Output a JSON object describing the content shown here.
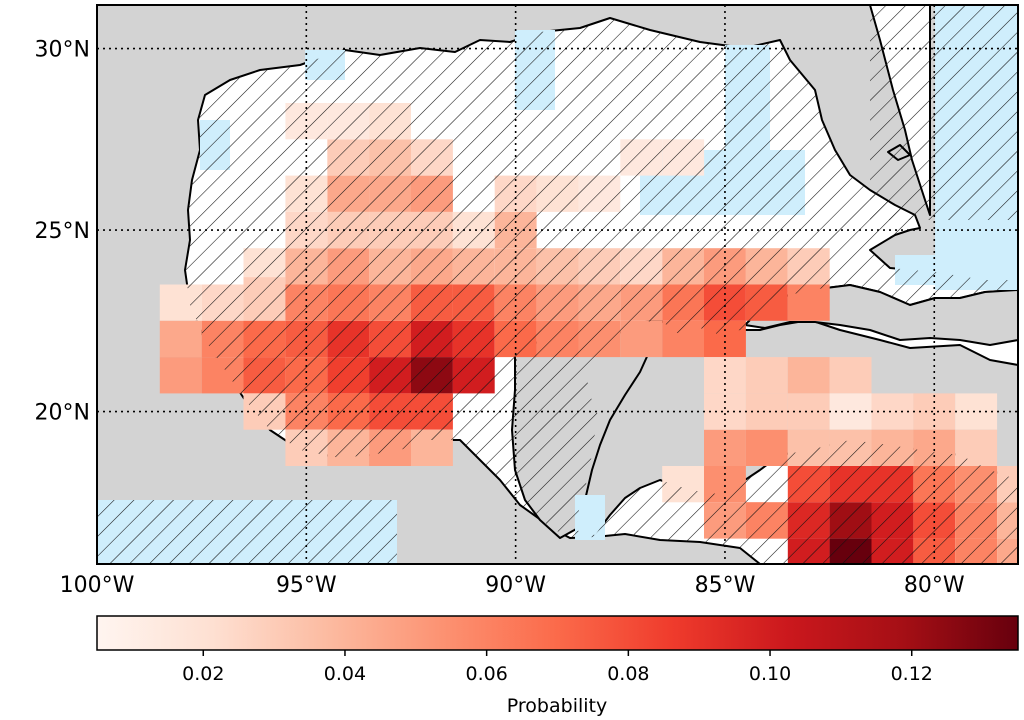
{
  "map": {
    "extent": {
      "lon_min": -100,
      "lon_max": -78,
      "lat_min": 15.8,
      "lat_max": 31.2
    },
    "gridlines": {
      "lon": [
        -95,
        -90,
        -85,
        -80
      ],
      "lat": [
        20,
        25,
        30
      ],
      "style": "dotted"
    },
    "colors": {
      "land": "#d3d3d3",
      "ocean": "#ffffff",
      "insignificant": "#cfeefc",
      "coast": "#000000"
    },
    "hatching": "diagonal hatch over areas not statistically significant"
  },
  "axes": {
    "lon_ticks": [
      {
        "value": -100,
        "label": "100°W"
      },
      {
        "value": -95,
        "label": "95°W"
      },
      {
        "value": -90,
        "label": "90°W"
      },
      {
        "value": -85,
        "label": "85°W"
      },
      {
        "value": -80,
        "label": "80°W"
      }
    ],
    "lat_ticks": [
      {
        "value": 20,
        "label": "20°N"
      },
      {
        "value": 25,
        "label": "25°N"
      },
      {
        "value": 30,
        "label": "30°N"
      }
    ]
  },
  "chart_data": {
    "type": "heatmap",
    "cell_size_deg": 1,
    "vmin": 0.005,
    "vmax": 0.135,
    "colormap": "Reds",
    "cells": [
      {
        "lon": -98,
        "lat": 23,
        "value": 0.02
      },
      {
        "lon": -97,
        "lat": 23,
        "value": 0.025
      },
      {
        "lon": -96,
        "lat": 23,
        "value": 0.03
      },
      {
        "lon": -98,
        "lat": 22,
        "value": 0.045
      },
      {
        "lon": -97,
        "lat": 22,
        "value": 0.06
      },
      {
        "lon": -96,
        "lat": 22,
        "value": 0.07
      },
      {
        "lon": -95,
        "lat": 22,
        "value": 0.075
      },
      {
        "lon": -94,
        "lat": 22,
        "value": 0.09
      },
      {
        "lon": -93,
        "lat": 22,
        "value": 0.08
      },
      {
        "lon": -92,
        "lat": 22,
        "value": 0.1
      },
      {
        "lon": -91,
        "lat": 22,
        "value": 0.09
      },
      {
        "lon": -90,
        "lat": 22,
        "value": 0.07
      },
      {
        "lon": -89,
        "lat": 22,
        "value": 0.06
      },
      {
        "lon": -88,
        "lat": 22,
        "value": 0.055
      },
      {
        "lon": -87,
        "lat": 22,
        "value": 0.05
      },
      {
        "lon": -86,
        "lat": 22,
        "value": 0.06
      },
      {
        "lon": -85,
        "lat": 22,
        "value": 0.07
      },
      {
        "lon": -98,
        "lat": 21,
        "value": 0.05
      },
      {
        "lon": -97,
        "lat": 21,
        "value": 0.06
      },
      {
        "lon": -96,
        "lat": 21,
        "value": 0.075
      },
      {
        "lon": -95,
        "lat": 21,
        "value": 0.07
      },
      {
        "lon": -94,
        "lat": 21,
        "value": 0.085
      },
      {
        "lon": -93,
        "lat": 21,
        "value": 0.1
      },
      {
        "lon": -92,
        "lat": 21,
        "value": 0.125
      },
      {
        "lon": -91,
        "lat": 21,
        "value": 0.1
      },
      {
        "lon": -96,
        "lat": 20,
        "value": 0.03
      },
      {
        "lon": -95,
        "lat": 20,
        "value": 0.06
      },
      {
        "lon": -94,
        "lat": 20,
        "value": 0.07
      },
      {
        "lon": -93,
        "lat": 20,
        "value": 0.08
      },
      {
        "lon": -92,
        "lat": 20,
        "value": 0.08
      },
      {
        "lon": -95,
        "lat": 19,
        "value": 0.03
      },
      {
        "lon": -94,
        "lat": 19,
        "value": 0.04
      },
      {
        "lon": -93,
        "lat": 19,
        "value": 0.05
      },
      {
        "lon": -92,
        "lat": 19,
        "value": 0.04
      },
      {
        "lon": -96,
        "lat": 24,
        "value": 0.02
      },
      {
        "lon": -95,
        "lat": 24,
        "value": 0.04
      },
      {
        "lon": -94,
        "lat": 24,
        "value": 0.05
      },
      {
        "lon": -93,
        "lat": 24,
        "value": 0.04
      },
      {
        "lon": -92,
        "lat": 24,
        "value": 0.045
      },
      {
        "lon": -91,
        "lat": 24,
        "value": 0.04
      },
      {
        "lon": -90,
        "lat": 24,
        "value": 0.04
      },
      {
        "lon": -89,
        "lat": 24,
        "value": 0.035
      },
      {
        "lon": -88,
        "lat": 24,
        "value": 0.03
      },
      {
        "lon": -87,
        "lat": 24,
        "value": 0.025
      },
      {
        "lon": -86,
        "lat": 24,
        "value": 0.04
      },
      {
        "lon": -85,
        "lat": 24,
        "value": 0.05
      },
      {
        "lon": -84,
        "lat": 24,
        "value": 0.04
      },
      {
        "lon": -83,
        "lat": 24,
        "value": 0.03
      },
      {
        "lon": -96,
        "lat": 23.2,
        "value": 0.03
      },
      {
        "lon": -95,
        "lat": 23,
        "value": 0.06
      },
      {
        "lon": -94,
        "lat": 23,
        "value": 0.065
      },
      {
        "lon": -93,
        "lat": 23,
        "value": 0.06
      },
      {
        "lon": -92,
        "lat": 23,
        "value": 0.075
      },
      {
        "lon": -91,
        "lat": 23,
        "value": 0.075
      },
      {
        "lon": -90,
        "lat": 23,
        "value": 0.06
      },
      {
        "lon": -89,
        "lat": 23,
        "value": 0.05
      },
      {
        "lon": -88,
        "lat": 23,
        "value": 0.045
      },
      {
        "lon": -87,
        "lat": 23,
        "value": 0.05
      },
      {
        "lon": -86,
        "lat": 23,
        "value": 0.065
      },
      {
        "lon": -85,
        "lat": 23,
        "value": 0.08
      },
      {
        "lon": -84,
        "lat": 23,
        "value": 0.075
      },
      {
        "lon": -83,
        "lat": 23,
        "value": 0.06
      },
      {
        "lon": -95,
        "lat": 25,
        "value": 0.025
      },
      {
        "lon": -94,
        "lat": 25,
        "value": 0.03
      },
      {
        "lon": -93,
        "lat": 25,
        "value": 0.03
      },
      {
        "lon": -92,
        "lat": 25,
        "value": 0.03
      },
      {
        "lon": -91,
        "lat": 25,
        "value": 0.02
      },
      {
        "lon": -90,
        "lat": 25,
        "value": 0.04
      },
      {
        "lon": -94,
        "lat": 26,
        "value": 0.045
      },
      {
        "lon": -93,
        "lat": 26,
        "value": 0.045
      },
      {
        "lon": -92,
        "lat": 26,
        "value": 0.05
      },
      {
        "lon": -95,
        "lat": 26,
        "value": 0.02
      },
      {
        "lon": -90,
        "lat": 26,
        "value": 0.025
      },
      {
        "lon": -89,
        "lat": 26,
        "value": 0.02
      },
      {
        "lon": -88,
        "lat": 26,
        "value": 0.015
      },
      {
        "lon": -94,
        "lat": 27,
        "value": 0.03
      },
      {
        "lon": -93,
        "lat": 27,
        "value": 0.035
      },
      {
        "lon": -92,
        "lat": 27,
        "value": 0.025
      },
      {
        "lon": -87,
        "lat": 27,
        "value": 0.015
      },
      {
        "lon": -86,
        "lat": 27,
        "value": 0.015
      },
      {
        "lon": -95,
        "lat": 28,
        "value": 0.015
      },
      {
        "lon": -94,
        "lat": 28,
        "value": 0.015
      },
      {
        "lon": -93,
        "lat": 28,
        "value": 0.02
      },
      {
        "lon": -85,
        "lat": 19,
        "value": 0.05
      },
      {
        "lon": -84,
        "lat": 19,
        "value": 0.055
      },
      {
        "lon": -85,
        "lat": 20,
        "value": 0.025
      },
      {
        "lon": -84,
        "lat": 20,
        "value": 0.03
      },
      {
        "lon": -85,
        "lat": 21,
        "value": 0.025
      },
      {
        "lon": -84,
        "lat": 21,
        "value": 0.03
      },
      {
        "lon": -83,
        "lat": 21,
        "value": 0.04
      },
      {
        "lon": -82,
        "lat": 21,
        "value": 0.03
      },
      {
        "lon": -83,
        "lat": 20,
        "value": 0.03
      },
      {
        "lon": -82,
        "lat": 20,
        "value": 0.015
      },
      {
        "lon": -81,
        "lat": 20,
        "value": 0.025
      },
      {
        "lon": -80,
        "lat": 20,
        "value": 0.03
      },
      {
        "lon": -79,
        "lat": 20,
        "value": 0.02
      },
      {
        "lon": -86,
        "lat": 18,
        "value": 0.02
      },
      {
        "lon": -85,
        "lat": 18,
        "value": 0.055
      },
      {
        "lon": -85,
        "lat": 17,
        "value": 0.05
      },
      {
        "lon": -84,
        "lat": 17,
        "value": 0.06
      },
      {
        "lon": -83,
        "lat": 18,
        "value": 0.08
      },
      {
        "lon": -82,
        "lat": 18,
        "value": 0.09
      },
      {
        "lon": -81,
        "lat": 18,
        "value": 0.09
      },
      {
        "lon": -80,
        "lat": 18,
        "value": 0.065
      },
      {
        "lon": -79,
        "lat": 18,
        "value": 0.055
      },
      {
        "lon": -78,
        "lat": 18,
        "value": 0.03
      },
      {
        "lon": -84,
        "lat": 17,
        "value": 0.06
      },
      {
        "lon": -83,
        "lat": 17,
        "value": 0.095
      },
      {
        "lon": -82,
        "lat": 17,
        "value": 0.12
      },
      {
        "lon": -81,
        "lat": 17,
        "value": 0.1
      },
      {
        "lon": -80,
        "lat": 17,
        "value": 0.08
      },
      {
        "lon": -79,
        "lat": 17,
        "value": 0.06
      },
      {
        "lon": -78,
        "lat": 17,
        "value": 0.04
      },
      {
        "lon": -83,
        "lat": 16,
        "value": 0.1
      },
      {
        "lon": -82,
        "lat": 16,
        "value": 0.135
      },
      {
        "lon": -81,
        "lat": 16,
        "value": 0.1
      },
      {
        "lon": -80,
        "lat": 16,
        "value": 0.075
      },
      {
        "lon": -79,
        "lat": 16,
        "value": 0.06
      },
      {
        "lon": -78,
        "lat": 16,
        "value": 0.045
      },
      {
        "lon": -82,
        "lat": 15.3,
        "value": 0.05
      },
      {
        "lon": -81,
        "lat": 15.3,
        "value": 0.04
      },
      {
        "lon": -80,
        "lat": 15.3,
        "value": 0.035
      },
      {
        "lon": -83,
        "lat": 19,
        "value": 0.035
      },
      {
        "lon": -82,
        "lat": 19,
        "value": 0.035
      },
      {
        "lon": -81,
        "lat": 19,
        "value": 0.04
      },
      {
        "lon": -80,
        "lat": 19,
        "value": 0.045
      },
      {
        "lon": -79,
        "lat": 19,
        "value": 0.03
      }
    ],
    "colorbar": {
      "label": "Probability",
      "orientation": "horizontal",
      "ticks": [
        {
          "value": 0.02,
          "label": "0.02"
        },
        {
          "value": 0.04,
          "label": "0.04"
        },
        {
          "value": 0.06,
          "label": "0.06"
        },
        {
          "value": 0.08,
          "label": "0.08"
        },
        {
          "value": 0.1,
          "label": "0.10"
        },
        {
          "value": 0.12,
          "label": "0.12"
        }
      ]
    }
  }
}
